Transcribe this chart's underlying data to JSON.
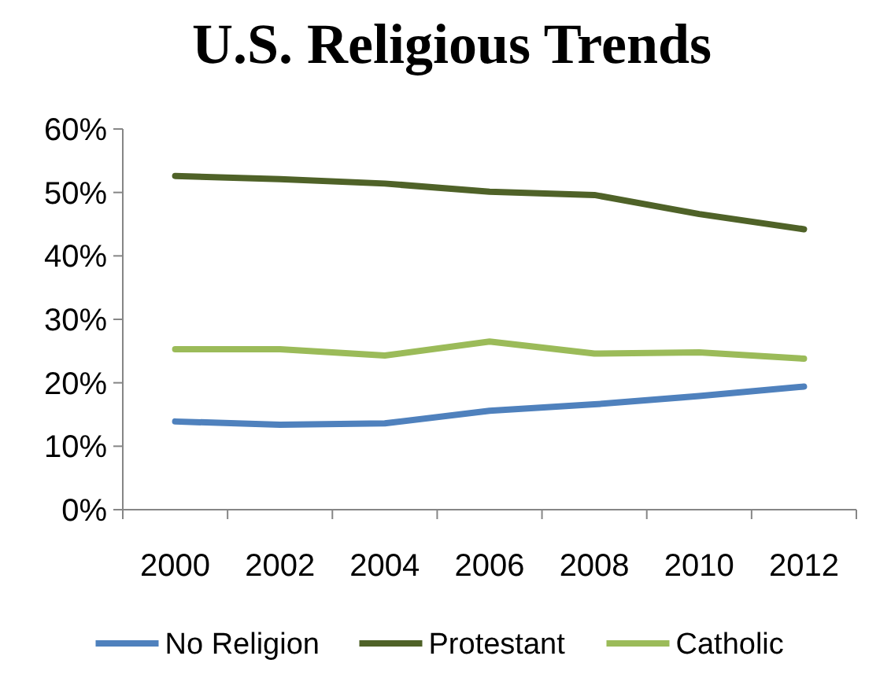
{
  "chart_data": {
    "type": "line",
    "title": "U.S. Religious Trends",
    "categories": [
      "2000",
      "2002",
      "2004",
      "2006",
      "2008",
      "2010",
      "2012"
    ],
    "series": [
      {
        "name": "No Religion",
        "color": "#4f81bd",
        "values": [
          13.9,
          13.4,
          13.6,
          15.6,
          16.6,
          17.9,
          19.4
        ]
      },
      {
        "name": "Protestant",
        "color": "#4f6228",
        "values": [
          52.6,
          52.1,
          51.4,
          50.1,
          49.6,
          46.6,
          44.2
        ]
      },
      {
        "name": "Catholic",
        "color": "#9bbb59",
        "values": [
          25.3,
          25.3,
          24.3,
          26.5,
          24.6,
          24.8,
          23.8
        ]
      }
    ],
    "ylim": [
      0,
      60
    ],
    "yticks": [
      {
        "value": 0,
        "label": "0%"
      },
      {
        "value": 10,
        "label": "10%"
      },
      {
        "value": 20,
        "label": "20%"
      },
      {
        "value": 30,
        "label": "30%"
      },
      {
        "value": 40,
        "label": "40%"
      },
      {
        "value": 50,
        "label": "50%"
      },
      {
        "value": 60,
        "label": "60%"
      }
    ],
    "legend": "bottom",
    "marker": "none",
    "line_style": "solid"
  }
}
